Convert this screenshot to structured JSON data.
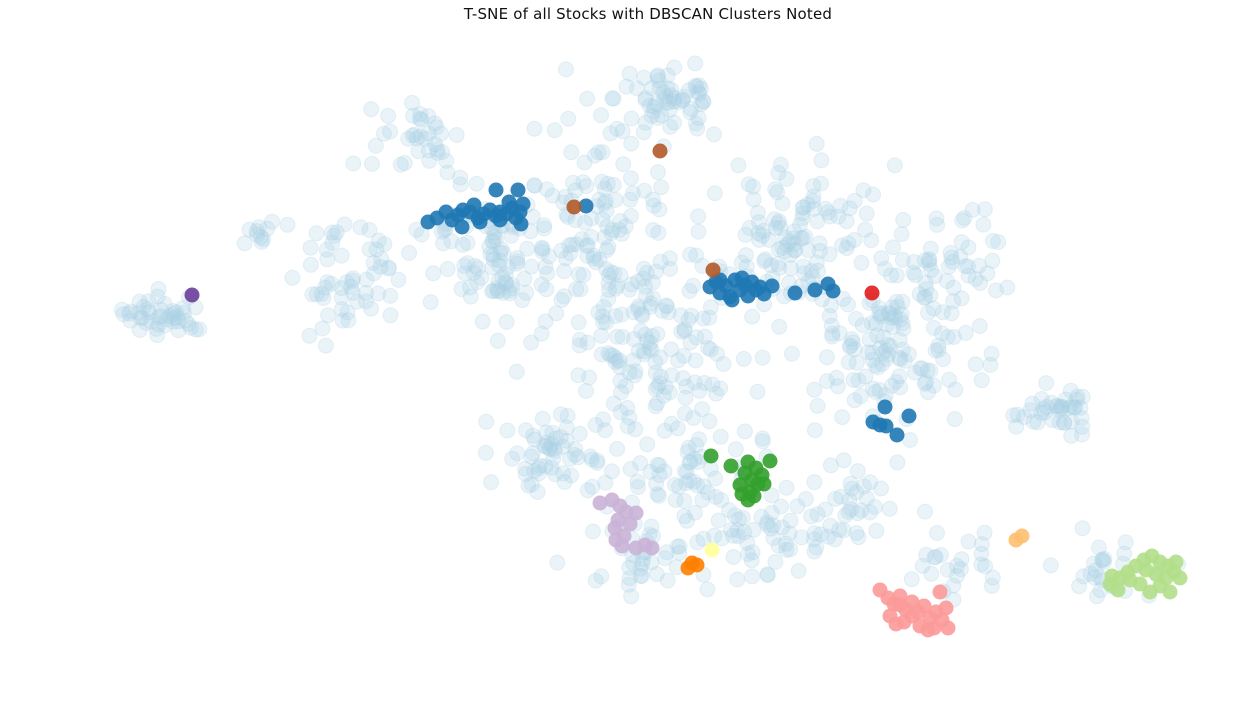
{
  "chart_data": {
    "type": "scatter",
    "title": "T-SNE of all Stocks with DBSCAN Clusters Noted",
    "xlabel": "",
    "ylabel": "",
    "axes_visible": false,
    "grid": false,
    "legend": "none",
    "noise": {
      "color": "#a6cee3",
      "opacity": 0.25,
      "regions": [
        {
          "center": [
            165,
            315
          ],
          "spread": [
            38,
            18
          ],
          "count": 45
        },
        {
          "center": [
            265,
            235
          ],
          "spread": [
            18,
            12
          ],
          "count": 10
        },
        {
          "center": [
            345,
            270
          ],
          "spread": [
            55,
            55
          ],
          "count": 55
        },
        {
          "center": [
            410,
            140
          ],
          "spread": [
            45,
            40
          ],
          "count": 35
        },
        {
          "center": [
            500,
            260
          ],
          "spread": [
            70,
            65
          ],
          "count": 110
        },
        {
          "center": [
            600,
            200
          ],
          "spread": [
            60,
            70
          ],
          "count": 75
        },
        {
          "center": [
            670,
            100
          ],
          "spread": [
            50,
            40
          ],
          "count": 60
        },
        {
          "center": [
            650,
            330
          ],
          "spread": [
            85,
            75
          ],
          "count": 140
        },
        {
          "center": [
            790,
            230
          ],
          "spread": [
            80,
            70
          ],
          "count": 110
        },
        {
          "center": [
            880,
            350
          ],
          "spread": [
            85,
            70
          ],
          "count": 130
        },
        {
          "center": [
            940,
            260
          ],
          "spread": [
            55,
            50
          ],
          "count": 50
        },
        {
          "center": [
            1055,
            410
          ],
          "spread": [
            35,
            22
          ],
          "count": 40
        },
        {
          "center": [
            560,
            450
          ],
          "spread": [
            60,
            40
          ],
          "count": 60
        },
        {
          "center": [
            680,
            470
          ],
          "spread": [
            70,
            55
          ],
          "count": 70
        },
        {
          "center": [
            760,
            540
          ],
          "spread": [
            60,
            40
          ],
          "count": 45
        },
        {
          "center": [
            860,
            500
          ],
          "spread": [
            60,
            45
          ],
          "count": 40
        },
        {
          "center": [
            640,
            560
          ],
          "spread": [
            40,
            30
          ],
          "count": 35
        },
        {
          "center": [
            960,
            560
          ],
          "spread": [
            50,
            30
          ],
          "count": 25
        },
        {
          "center": [
            1110,
            570
          ],
          "spread": [
            45,
            35
          ],
          "count": 30
        }
      ]
    },
    "clusters": [
      {
        "color": "#1f78b4",
        "points": [
          [
            428,
            222
          ],
          [
            437,
            218
          ],
          [
            446,
            212
          ],
          [
            452,
            220
          ],
          [
            458,
            215
          ],
          [
            463,
            210
          ],
          [
            470,
            212
          ],
          [
            474,
            205
          ],
          [
            478,
            218
          ],
          [
            484,
            214
          ],
          [
            490,
            210
          ],
          [
            496,
            216
          ],
          [
            500,
            220
          ],
          [
            506,
            214
          ],
          [
            512,
            208
          ],
          [
            516,
            218
          ],
          [
            520,
            212
          ],
          [
            523,
            204
          ],
          [
            496,
            190
          ],
          [
            518,
            190
          ],
          [
            462,
            227
          ],
          [
            480,
            222
          ],
          [
            500,
            212
          ],
          [
            509,
            202
          ],
          [
            521,
            224
          ],
          [
            586,
            206
          ]
        ]
      },
      {
        "color": "#1f78b4",
        "points": [
          [
            710,
            287
          ],
          [
            716,
            282
          ],
          [
            720,
            293
          ],
          [
            726,
            286
          ],
          [
            730,
            297
          ],
          [
            735,
            280
          ],
          [
            740,
            290
          ],
          [
            745,
            285
          ],
          [
            748,
            296
          ],
          [
            752,
            282
          ],
          [
            756,
            290
          ],
          [
            760,
            287
          ],
          [
            764,
            294
          ],
          [
            772,
            286
          ],
          [
            732,
            300
          ],
          [
            742,
            278
          ],
          [
            720,
            280
          ],
          [
            795,
            293
          ],
          [
            815,
            290
          ],
          [
            833,
            291
          ],
          [
            828,
            284
          ]
        ]
      },
      {
        "color": "#1f78b4",
        "points": [
          [
            885,
            407
          ],
          [
            909,
            416
          ],
          [
            873,
            422
          ],
          [
            880,
            425
          ],
          [
            886,
            426
          ],
          [
            897,
            435
          ]
        ]
      },
      {
        "color": "#b15928",
        "points": [
          [
            660,
            151
          ],
          [
            574,
            207
          ],
          [
            713,
            270
          ]
        ]
      },
      {
        "color": "#e31a1c",
        "points": [
          [
            872,
            293
          ]
        ]
      },
      {
        "color": "#6a3d9a",
        "points": [
          [
            192,
            295
          ]
        ]
      },
      {
        "color": "#33a02c",
        "points": [
          [
            711,
            456
          ],
          [
            731,
            466
          ],
          [
            748,
            462
          ],
          [
            756,
            468
          ],
          [
            762,
            475
          ],
          [
            752,
            480
          ],
          [
            745,
            473
          ],
          [
            758,
            484
          ],
          [
            750,
            492
          ],
          [
            742,
            494
          ],
          [
            770,
            461
          ],
          [
            740,
            485
          ],
          [
            754,
            496
          ],
          [
            764,
            484
          ],
          [
            748,
            500
          ]
        ]
      },
      {
        "color": "#cab2d6",
        "points": [
          [
            600,
            503
          ],
          [
            612,
            500
          ],
          [
            620,
            506
          ],
          [
            626,
            512
          ],
          [
            618,
            520
          ],
          [
            630,
            524
          ],
          [
            615,
            528
          ],
          [
            624,
            536
          ],
          [
            616,
            540
          ],
          [
            622,
            546
          ],
          [
            636,
            548
          ],
          [
            645,
            545
          ],
          [
            652,
            548
          ],
          [
            636,
            513
          ]
        ]
      },
      {
        "color": "#ff7f00",
        "points": [
          [
            688,
            568
          ],
          [
            697,
            565
          ],
          [
            692,
            563
          ]
        ]
      },
      {
        "color": "#ffff99",
        "points": [
          [
            712,
            550
          ]
        ]
      },
      {
        "color": "#fdbf6f",
        "points": [
          [
            1016,
            540
          ],
          [
            1022,
            536
          ]
        ]
      },
      {
        "color": "#fb9a99",
        "points": [
          [
            880,
            590
          ],
          [
            888,
            598
          ],
          [
            894,
            604
          ],
          [
            900,
            596
          ],
          [
            906,
            610
          ],
          [
            912,
            602
          ],
          [
            918,
            612
          ],
          [
            924,
            606
          ],
          [
            930,
            618
          ],
          [
            936,
            612
          ],
          [
            942,
            620
          ],
          [
            948,
            628
          ],
          [
            934,
            628
          ],
          [
            920,
            626
          ],
          [
            904,
            622
          ],
          [
            890,
            616
          ],
          [
            896,
            624
          ],
          [
            946,
            608
          ],
          [
            940,
            592
          ],
          [
            928,
            630
          ],
          [
            912,
            616
          ],
          [
            900,
            605
          ]
        ]
      },
      {
        "color": "#b2df8a",
        "points": [
          [
            1110,
            584
          ],
          [
            1120,
            578
          ],
          [
            1128,
            572
          ],
          [
            1136,
            566
          ],
          [
            1144,
            560
          ],
          [
            1152,
            556
          ],
          [
            1160,
            562
          ],
          [
            1168,
            566
          ],
          [
            1174,
            572
          ],
          [
            1180,
            578
          ],
          [
            1170,
            592
          ],
          [
            1160,
            586
          ],
          [
            1150,
            592
          ],
          [
            1140,
            584
          ],
          [
            1130,
            580
          ],
          [
            1146,
            570
          ],
          [
            1156,
            574
          ],
          [
            1166,
            578
          ],
          [
            1118,
            590
          ],
          [
            1112,
            576
          ],
          [
            1176,
            562
          ]
        ]
      }
    ]
  }
}
